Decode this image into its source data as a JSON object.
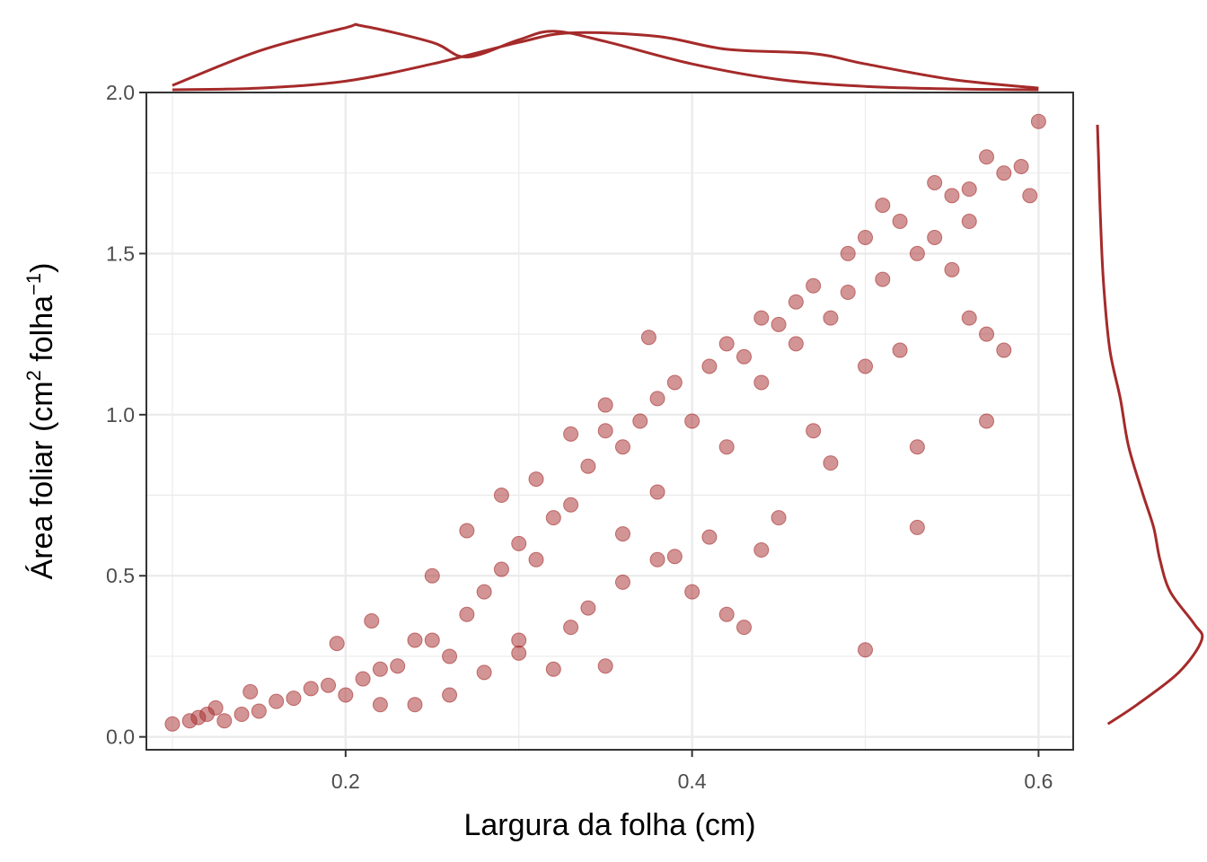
{
  "chart_data": {
    "type": "scatter",
    "title": "",
    "xlabel": "Largura da folha (cm)",
    "ylabel_main": "Área foliar (cm",
    "ylabel_sup1": "2",
    "ylabel_mid": " folha",
    "ylabel_sup2": "−1",
    "ylabel_end": ")",
    "xlim": [
      0.085,
      0.62
    ],
    "ylim": [
      -0.04,
      2.0
    ],
    "x_ticks": [
      0.2,
      0.4,
      0.6
    ],
    "x_tick_labels": [
      "0.2",
      "0.4",
      "0.6"
    ],
    "y_ticks": [
      0.0,
      0.5,
      1.0,
      1.5,
      2.0
    ],
    "y_tick_labels": [
      "0.0",
      "0.5",
      "1.0",
      "1.5",
      "2.0"
    ],
    "grid": true,
    "point_color": "#A52A2A",
    "point_alpha": 0.5,
    "marginal_density": {
      "top": "x",
      "right": "y",
      "groups_on_top": 2
    },
    "points": [
      [
        0.1,
        0.04
      ],
      [
        0.11,
        0.05
      ],
      [
        0.115,
        0.06
      ],
      [
        0.12,
        0.07
      ],
      [
        0.125,
        0.09
      ],
      [
        0.13,
        0.05
      ],
      [
        0.14,
        0.07
      ],
      [
        0.145,
        0.14
      ],
      [
        0.15,
        0.08
      ],
      [
        0.16,
        0.11
      ],
      [
        0.17,
        0.12
      ],
      [
        0.18,
        0.15
      ],
      [
        0.19,
        0.16
      ],
      [
        0.195,
        0.29
      ],
      [
        0.2,
        0.13
      ],
      [
        0.21,
        0.18
      ],
      [
        0.215,
        0.36
      ],
      [
        0.22,
        0.21
      ],
      [
        0.23,
        0.22
      ],
      [
        0.24,
        0.3
      ],
      [
        0.25,
        0.3
      ],
      [
        0.26,
        0.25
      ],
      [
        0.27,
        0.38
      ],
      [
        0.28,
        0.45
      ],
      [
        0.29,
        0.52
      ],
      [
        0.3,
        0.6
      ],
      [
        0.31,
        0.55
      ],
      [
        0.32,
        0.68
      ],
      [
        0.33,
        0.72
      ],
      [
        0.34,
        0.84
      ],
      [
        0.35,
        0.95
      ],
      [
        0.36,
        0.9
      ],
      [
        0.37,
        0.98
      ],
      [
        0.375,
        1.24
      ],
      [
        0.38,
        1.05
      ],
      [
        0.39,
        1.1
      ],
      [
        0.4,
        0.98
      ],
      [
        0.41,
        1.15
      ],
      [
        0.42,
        1.22
      ],
      [
        0.43,
        1.18
      ],
      [
        0.44,
        1.3
      ],
      [
        0.45,
        1.28
      ],
      [
        0.46,
        1.35
      ],
      [
        0.47,
        1.4
      ],
      [
        0.48,
        1.3
      ],
      [
        0.49,
        1.5
      ],
      [
        0.5,
        1.55
      ],
      [
        0.51,
        1.65
      ],
      [
        0.52,
        1.6
      ],
      [
        0.53,
        1.5
      ],
      [
        0.54,
        1.72
      ],
      [
        0.55,
        1.68
      ],
      [
        0.56,
        1.7
      ],
      [
        0.57,
        1.8
      ],
      [
        0.58,
        1.75
      ],
      [
        0.59,
        1.77
      ],
      [
        0.595,
        1.68
      ],
      [
        0.6,
        1.91
      ],
      [
        0.33,
        0.34
      ],
      [
        0.34,
        0.4
      ],
      [
        0.36,
        0.48
      ],
      [
        0.38,
        0.55
      ],
      [
        0.4,
        0.45
      ],
      [
        0.42,
        0.38
      ],
      [
        0.43,
        0.34
      ],
      [
        0.45,
        0.68
      ],
      [
        0.48,
        0.85
      ],
      [
        0.5,
        0.27
      ],
      [
        0.53,
        0.65
      ],
      [
        0.53,
        0.9
      ],
      [
        0.57,
        0.98
      ],
      [
        0.58,
        1.2
      ],
      [
        0.56,
        1.3
      ],
      [
        0.52,
        1.2
      ],
      [
        0.5,
        1.15
      ],
      [
        0.47,
        0.95
      ],
      [
        0.44,
        0.58
      ],
      [
        0.41,
        0.62
      ],
      [
        0.39,
        0.56
      ],
      [
        0.35,
        0.22
      ],
      [
        0.32,
        0.21
      ],
      [
        0.3,
        0.3
      ],
      [
        0.26,
        0.13
      ],
      [
        0.24,
        0.1
      ],
      [
        0.22,
        0.1
      ],
      [
        0.25,
        0.5
      ],
      [
        0.27,
        0.64
      ],
      [
        0.29,
        0.75
      ],
      [
        0.31,
        0.8
      ],
      [
        0.33,
        0.94
      ],
      [
        0.35,
        1.03
      ],
      [
        0.3,
        0.26
      ],
      [
        0.28,
        0.2
      ],
      [
        0.36,
        0.63
      ],
      [
        0.38,
        0.76
      ],
      [
        0.42,
        0.9
      ],
      [
        0.44,
        1.1
      ],
      [
        0.46,
        1.22
      ],
      [
        0.49,
        1.38
      ],
      [
        0.51,
        1.42
      ],
      [
        0.54,
        1.55
      ],
      [
        0.55,
        1.45
      ],
      [
        0.57,
        1.25
      ],
      [
        0.56,
        1.6
      ]
    ],
    "x_density_a": [
      [
        0.1,
        0.05
      ],
      [
        0.15,
        0.45
      ],
      [
        0.2,
        0.72
      ],
      [
        0.21,
        0.74
      ],
      [
        0.25,
        0.55
      ],
      [
        0.27,
        0.38
      ],
      [
        0.3,
        0.58
      ],
      [
        0.32,
        0.68
      ],
      [
        0.35,
        0.56
      ],
      [
        0.4,
        0.3
      ],
      [
        0.45,
        0.12
      ],
      [
        0.5,
        0.04
      ],
      [
        0.55,
        0.01
      ],
      [
        0.6,
        0.0
      ]
    ],
    "x_density_b": [
      [
        0.1,
        0.0
      ],
      [
        0.15,
        0.02
      ],
      [
        0.2,
        0.1
      ],
      [
        0.25,
        0.3
      ],
      [
        0.3,
        0.55
      ],
      [
        0.33,
        0.66
      ],
      [
        0.38,
        0.62
      ],
      [
        0.42,
        0.47
      ],
      [
        0.47,
        0.42
      ],
      [
        0.5,
        0.3
      ],
      [
        0.55,
        0.12
      ],
      [
        0.6,
        0.02
      ]
    ],
    "y_density": [
      [
        0.04,
        0.1
      ],
      [
        0.1,
        0.38
      ],
      [
        0.2,
        0.78
      ],
      [
        0.3,
        1.0
      ],
      [
        0.35,
        0.93
      ],
      [
        0.45,
        0.7
      ],
      [
        0.55,
        0.6
      ],
      [
        0.65,
        0.54
      ],
      [
        0.75,
        0.44
      ],
      [
        0.9,
        0.3
      ],
      [
        1.05,
        0.22
      ],
      [
        1.2,
        0.12
      ],
      [
        1.4,
        0.06
      ],
      [
        1.6,
        0.03
      ],
      [
        1.8,
        0.01
      ],
      [
        1.9,
        0.0
      ]
    ]
  }
}
